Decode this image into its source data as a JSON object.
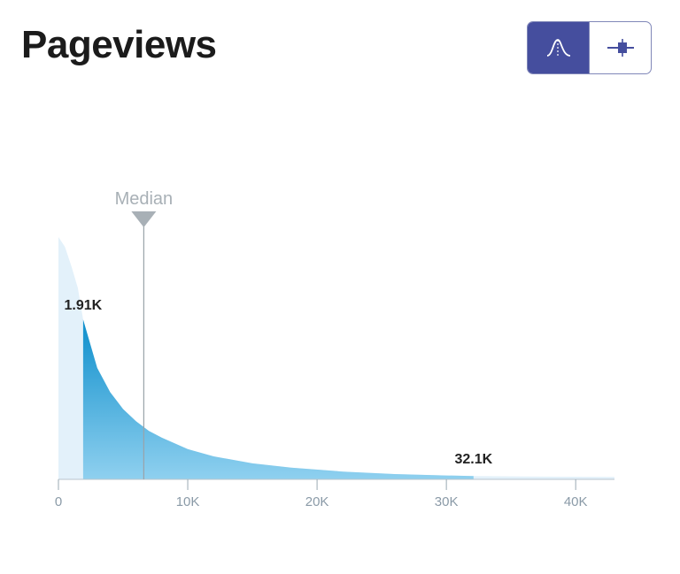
{
  "header": {
    "title": "Pageviews"
  },
  "toggle": {
    "options": [
      {
        "name": "distribution-view",
        "icon": "distribution-curve-icon",
        "active": true
      },
      {
        "name": "boxplot-view",
        "icon": "boxplot-icon",
        "active": false
      }
    ]
  },
  "colors": {
    "accent": "#454e9e",
    "fill_dark": "#1595cf",
    "fill_light": "#8ecbea",
    "tail_fill": "#e3f1fa",
    "median_line": "#9aa3aa"
  },
  "chart_data": {
    "type": "area",
    "xlim": [
      0,
      43000
    ],
    "x_ticks": [
      0,
      10000,
      20000,
      30000,
      40000
    ],
    "x_tick_labels": [
      "0",
      "10K",
      "20K",
      "30K",
      "40K"
    ],
    "density_points": [
      [
        0,
        1.0
      ],
      [
        500,
        0.96
      ],
      [
        1000,
        0.88
      ],
      [
        1500,
        0.79
      ],
      [
        1910,
        0.66
      ],
      [
        3000,
        0.46
      ],
      [
        4000,
        0.36
      ],
      [
        5000,
        0.29
      ],
      [
        6000,
        0.24
      ],
      [
        7000,
        0.2
      ],
      [
        8000,
        0.172
      ],
      [
        10000,
        0.125
      ],
      [
        12000,
        0.095
      ],
      [
        15000,
        0.066
      ],
      [
        18000,
        0.048
      ],
      [
        22000,
        0.032
      ],
      [
        26000,
        0.022
      ],
      [
        30000,
        0.016
      ],
      [
        32100,
        0.014
      ],
      [
        36000,
        0.012
      ],
      [
        43000,
        0.01
      ]
    ],
    "median_value": 6600,
    "median_label": "Median",
    "range_low": 1910,
    "range_low_label": "1.91K",
    "range_high": 32100,
    "range_high_label": "32.1K"
  }
}
